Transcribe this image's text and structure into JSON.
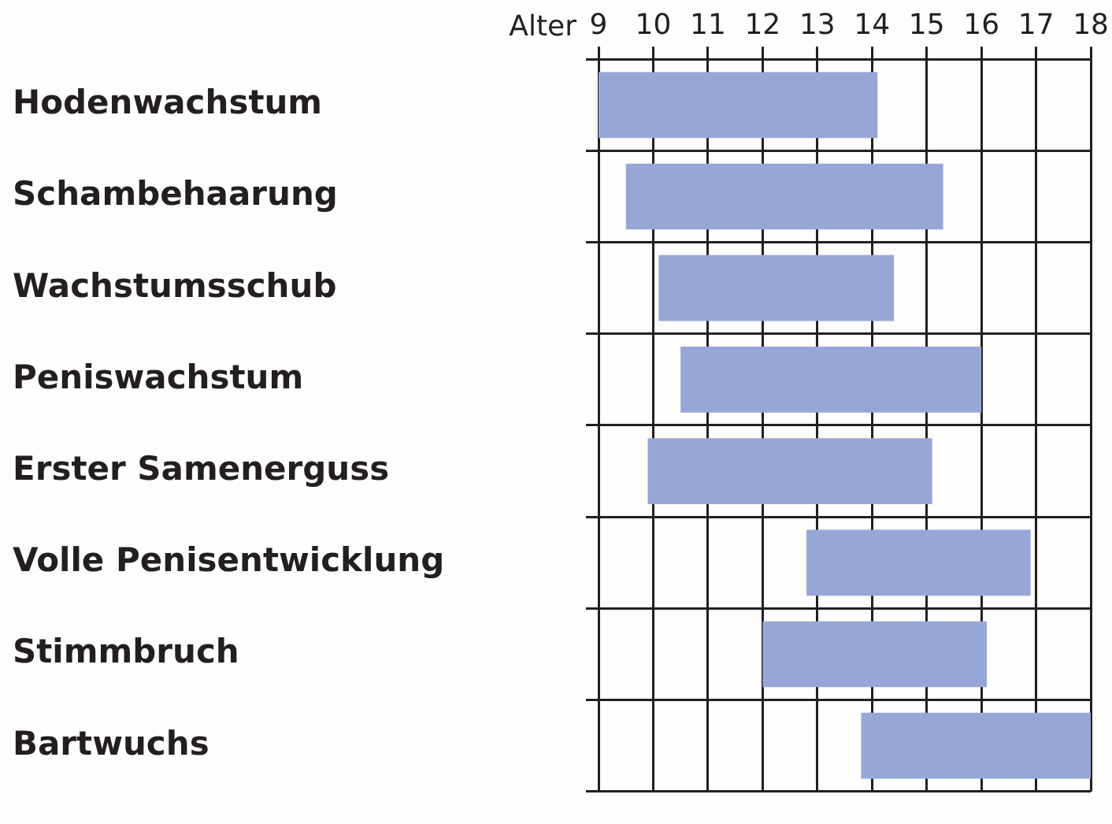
{
  "chart_data": {
    "type": "bar",
    "orientation": "horizontal",
    "xlabel": "Alter",
    "categories": [
      "Hodenwachstum",
      "Schambehaarung",
      "Wachstumsschub",
      "Peniswachstum",
      "Erster Samenerguss",
      "Volle Penisentwicklung",
      "Stimmbruch",
      "Bartwuchs"
    ],
    "base": [
      9,
      9.5,
      10.1,
      10.5,
      9.9,
      12.8,
      12,
      13.8
    ],
    "values": [
      5.1,
      5.8,
      4.3,
      5.5,
      5.2,
      4.1,
      4.1,
      4.2
    ],
    "color": "#96a6d6",
    "xlim": [
      9,
      18
    ],
    "xticks": [
      9,
      10,
      11,
      12,
      13,
      14,
      15,
      16,
      17,
      18
    ],
    "grid": true,
    "legend": false
  }
}
